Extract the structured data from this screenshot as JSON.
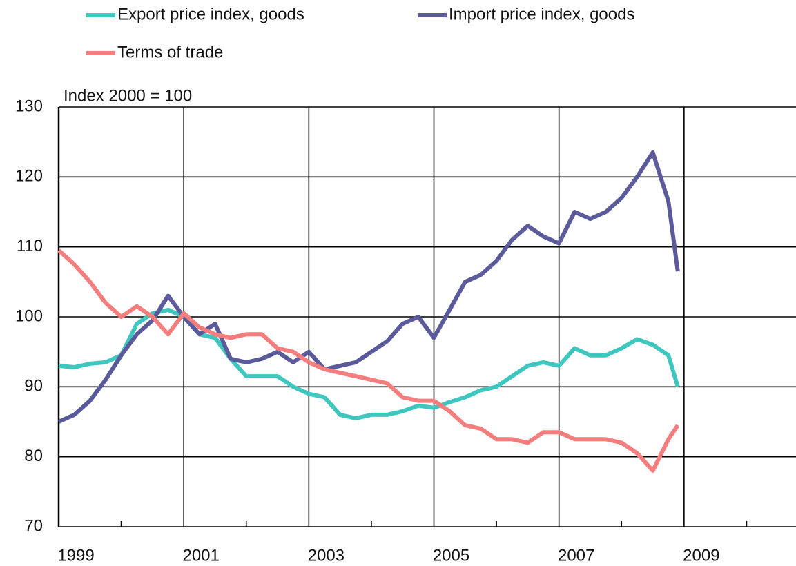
{
  "chart_data": {
    "type": "line",
    "annotation": "Index 2000 = 100",
    "x": [
      1999.0,
      1999.25,
      1999.5,
      1999.75,
      2000.0,
      2000.25,
      2000.5,
      2000.75,
      2001.0,
      2001.25,
      2001.5,
      2001.75,
      2002.0,
      2002.25,
      2002.5,
      2002.75,
      2003.0,
      2003.25,
      2003.5,
      2003.75,
      2004.0,
      2004.25,
      2004.5,
      2004.75,
      2005.0,
      2005.25,
      2005.5,
      2005.75,
      2006.0,
      2006.25,
      2006.5,
      2006.75,
      2007.0,
      2007.25,
      2007.5,
      2007.75,
      2008.0,
      2008.25,
      2008.5,
      2008.75,
      2008.9
    ],
    "series": [
      {
        "name": "Export price index, goods",
        "color": "#3ec6bf",
        "values": [
          93,
          92.8,
          93.3,
          93.5,
          94.5,
          99,
          100.5,
          101,
          100,
          97.5,
          97,
          94,
          91.5,
          91.5,
          91.5,
          90,
          89,
          88.5,
          86,
          85.5,
          86,
          86,
          86.5,
          87.3,
          87,
          87.8,
          88.5,
          89.5,
          90,
          91.5,
          93,
          93.5,
          93,
          95.5,
          94.5,
          94.5,
          95.5,
          96.8,
          96,
          94.5,
          90
        ]
      },
      {
        "name": "Import price index, goods",
        "color": "#5b5b9b",
        "values": [
          85,
          86,
          88,
          91,
          94.5,
          97.5,
          99.5,
          103,
          100,
          97.5,
          99,
          94,
          93.5,
          94,
          95,
          93.5,
          95,
          92.5,
          93,
          93.5,
          95,
          96.5,
          99,
          100,
          97,
          101,
          105,
          106,
          108,
          111,
          113,
          111.5,
          110.5,
          115,
          114,
          115,
          117,
          120,
          123.5,
          116.5,
          106.5
        ]
      },
      {
        "name": "Terms of trade",
        "color": "#f47e7e",
        "values": [
          109.5,
          107.5,
          105,
          102,
          100,
          101.5,
          100,
          97.5,
          100.5,
          98.5,
          97.5,
          97,
          97.5,
          97.5,
          95.5,
          95,
          93.5,
          92.5,
          92,
          91.5,
          91,
          90.5,
          88.5,
          88,
          88,
          86.5,
          84.5,
          84,
          82.5,
          82.5,
          82,
          83.5,
          83.5,
          82.5,
          82.5,
          82.5,
          82,
          80.5,
          78,
          82.5,
          84.5
        ]
      }
    ],
    "xlim": [
      1999,
      2010.79
    ],
    "xticks": [
      1999,
      2001,
      2003,
      2005,
      2007,
      2009
    ],
    "minor_xticks": [
      2000,
      2002,
      2004,
      2006,
      2008,
      2010
    ],
    "ylim": [
      70,
      130
    ],
    "yticks": [
      70,
      80,
      90,
      100,
      110,
      120,
      130
    ],
    "grid": true
  }
}
